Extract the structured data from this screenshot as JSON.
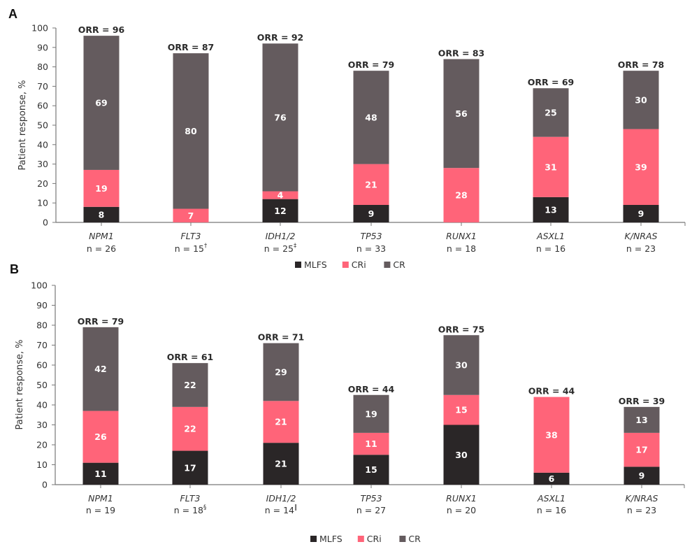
{
  "colors": {
    "MLFS": "#2a2627",
    "CRi": "#ff6479",
    "CR": "#645b5e",
    "axis": "#777777"
  },
  "chart_data": [
    {
      "type": "bar",
      "stacked": true,
      "panel": "A",
      "ylabel": "Patient response, %",
      "ylim": [
        0,
        100
      ],
      "yticks": [
        0,
        10,
        20,
        30,
        40,
        50,
        60,
        70,
        80,
        90,
        100
      ],
      "categories": [
        "NPM1",
        "FLT3",
        "IDH1/2",
        "TP53",
        "RUNX1",
        "ASXL1",
        "K/NRAS"
      ],
      "n_labels": [
        {
          "text": "n = 26",
          "sup": ""
        },
        {
          "text": "n = 15",
          "sup": "†"
        },
        {
          "text": "n = 25",
          "sup": "‡"
        },
        {
          "text": "n = 33",
          "sup": ""
        },
        {
          "text": "n = 18",
          "sup": ""
        },
        {
          "text": "n = 16",
          "sup": ""
        },
        {
          "text": "n = 23",
          "sup": ""
        }
      ],
      "orr_labels": [
        "ORR = 96",
        "ORR = 87",
        "ORR = 92",
        "ORR = 79",
        "ORR = 83",
        "ORR = 69",
        "ORR = 78"
      ],
      "series": [
        {
          "name": "MLFS",
          "values": [
            8,
            0,
            12,
            9,
            0,
            13,
            9
          ]
        },
        {
          "name": "CRi",
          "values": [
            19,
            7,
            4,
            21,
            28,
            31,
            39
          ]
        },
        {
          "name": "CR",
          "values": [
            69,
            80,
            76,
            48,
            56,
            25,
            30
          ]
        }
      ],
      "legend": [
        "MLFS",
        "CRi",
        "CR"
      ],
      "legend_position": "bottom"
    },
    {
      "type": "bar",
      "stacked": true,
      "panel": "B",
      "ylabel": "Patient response, %",
      "ylim": [
        0,
        100
      ],
      "yticks": [
        0,
        10,
        20,
        30,
        40,
        50,
        60,
        70,
        80,
        90,
        100
      ],
      "categories": [
        "NPM1",
        "FLT3",
        "IDH1/2",
        "TP53",
        "RUNX1",
        "ASXL1",
        "K/NRAS"
      ],
      "n_labels": [
        {
          "text": "n = 19",
          "sup": ""
        },
        {
          "text": "n = 18",
          "sup": "§"
        },
        {
          "text": "n = 14",
          "sup": "‖"
        },
        {
          "text": "n = 27",
          "sup": ""
        },
        {
          "text": "n = 20",
          "sup": ""
        },
        {
          "text": "n = 16",
          "sup": ""
        },
        {
          "text": "n = 23",
          "sup": ""
        }
      ],
      "orr_labels": [
        "ORR = 79",
        "ORR = 61",
        "ORR = 71",
        "ORR = 44",
        "ORR = 75",
        "ORR = 44",
        "ORR = 39"
      ],
      "series": [
        {
          "name": "MLFS",
          "values": [
            11,
            17,
            21,
            15,
            30,
            6,
            9
          ]
        },
        {
          "name": "CRi",
          "values": [
            26,
            22,
            21,
            11,
            15,
            38,
            17
          ]
        },
        {
          "name": "CR",
          "values": [
            42,
            22,
            29,
            19,
            30,
            0,
            13
          ]
        }
      ],
      "legend": [
        "MLFS",
        "CRi",
        "CR"
      ],
      "legend_position": "bottom"
    }
  ]
}
